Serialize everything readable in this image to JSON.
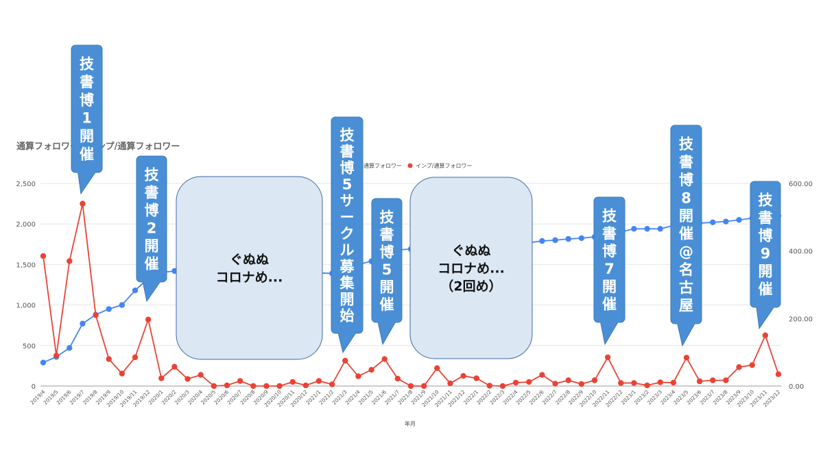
{
  "chart_data": {
    "type": "line",
    "title": "通算フォロワーとインプ/通算フォロワー",
    "xlabel": "年月",
    "ylabel_left": "",
    "ylabel_right": "",
    "y_left_range": [
      0,
      2500
    ],
    "y_right_range": [
      0,
      600
    ],
    "y_left_ticks": [
      "0",
      "500",
      "1,000",
      "1,500",
      "2,000",
      "2,500"
    ],
    "y_right_ticks": [
      "0.00",
      "200.00",
      "400.00",
      "600.00"
    ],
    "grid": true,
    "legend_position": "top",
    "categories": [
      "2019/4",
      "2019/5",
      "2019/6",
      "2019/7",
      "2019/8",
      "2019/9",
      "2019/10",
      "2019/11",
      "2019/12",
      "2020/1",
      "2020/2",
      "2020/3",
      "2020/4",
      "2020/5",
      "2020/6",
      "2020/7",
      "2020/8",
      "2020/9",
      "2020/10",
      "2020/11",
      "2020/12",
      "2021/1",
      "2021/2",
      "2021/3",
      "2021/4",
      "2021/5",
      "2021/6",
      "2021/7",
      "2021/8",
      "2021/9",
      "2021/10",
      "2021/11",
      "2021/12",
      "2022/1",
      "2022/2",
      "2022/3",
      "2022/4",
      "2022/5",
      "2022/6",
      "2022/7",
      "2022/8",
      "2022/9",
      "2022/10",
      "2022/11",
      "2022/12",
      "2023/1",
      "2023/2",
      "2023/3",
      "2023/4",
      "2023/5",
      "2023/6",
      "2023/7",
      "2023/8",
      "2023/9",
      "2023/10",
      "2023/11",
      "2023/12"
    ],
    "series": [
      {
        "name": "通算フォロワー",
        "axis": "left",
        "color": "#4285f4",
        "values": [
          290,
          360,
          470,
          770,
          880,
          950,
          1000,
          1180,
          1330,
          1400,
          1420,
          1425,
          1425,
          1415,
          1410,
          1410,
          1405,
          1400,
          1400,
          1400,
          1395,
          1395,
          1390,
          1450,
          1500,
          1540,
          1600,
          1680,
          1690,
          1680,
          1700,
          1710,
          1720,
          1750,
          1750,
          1750,
          1755,
          1770,
          1790,
          1800,
          1815,
          1825,
          1840,
          1870,
          1900,
          1940,
          1940,
          1940,
          1980,
          2000,
          2010,
          2020,
          2030,
          2050,
          2070,
          2080,
          2100
        ]
      },
      {
        "name": "インプ/通算フォロワー",
        "axis": "right",
        "color": "#ea4335",
        "values": [
          385,
          90,
          370,
          540,
          210,
          80,
          37,
          85,
          197,
          23,
          57,
          21,
          33,
          0,
          2,
          15,
          0,
          0,
          0,
          12,
          2,
          15,
          5,
          75,
          29,
          48,
          80,
          22,
          0,
          0,
          53,
          8,
          30,
          23,
          1,
          0,
          10,
          12,
          33,
          7,
          17,
          6,
          17,
          85,
          9,
          9,
          2,
          11,
          10,
          84,
          14,
          17,
          17,
          56,
          62,
          150,
          35
        ]
      }
    ],
    "annotations": [
      {
        "text": "技書博1開催",
        "target": "2019/7"
      },
      {
        "text": "技書博2開催",
        "target": "2019/12"
      },
      {
        "text": "技書博5サークル募集開始",
        "target": "2021/3"
      },
      {
        "text": "技書博5開催",
        "target": "2021/6"
      },
      {
        "text": "技書博7開催",
        "target": "2022/11"
      },
      {
        "text": "技書博8開催@名古屋",
        "target": "2023/5"
      },
      {
        "text": "技書博9開催",
        "target": "2023/11"
      }
    ],
    "notes": [
      {
        "lines": [
          "ぐぬぬ",
          "コロナめ..."
        ]
      },
      {
        "lines": [
          "ぐぬぬ",
          "コロナめ...",
          "（2回め）"
        ]
      }
    ]
  }
}
